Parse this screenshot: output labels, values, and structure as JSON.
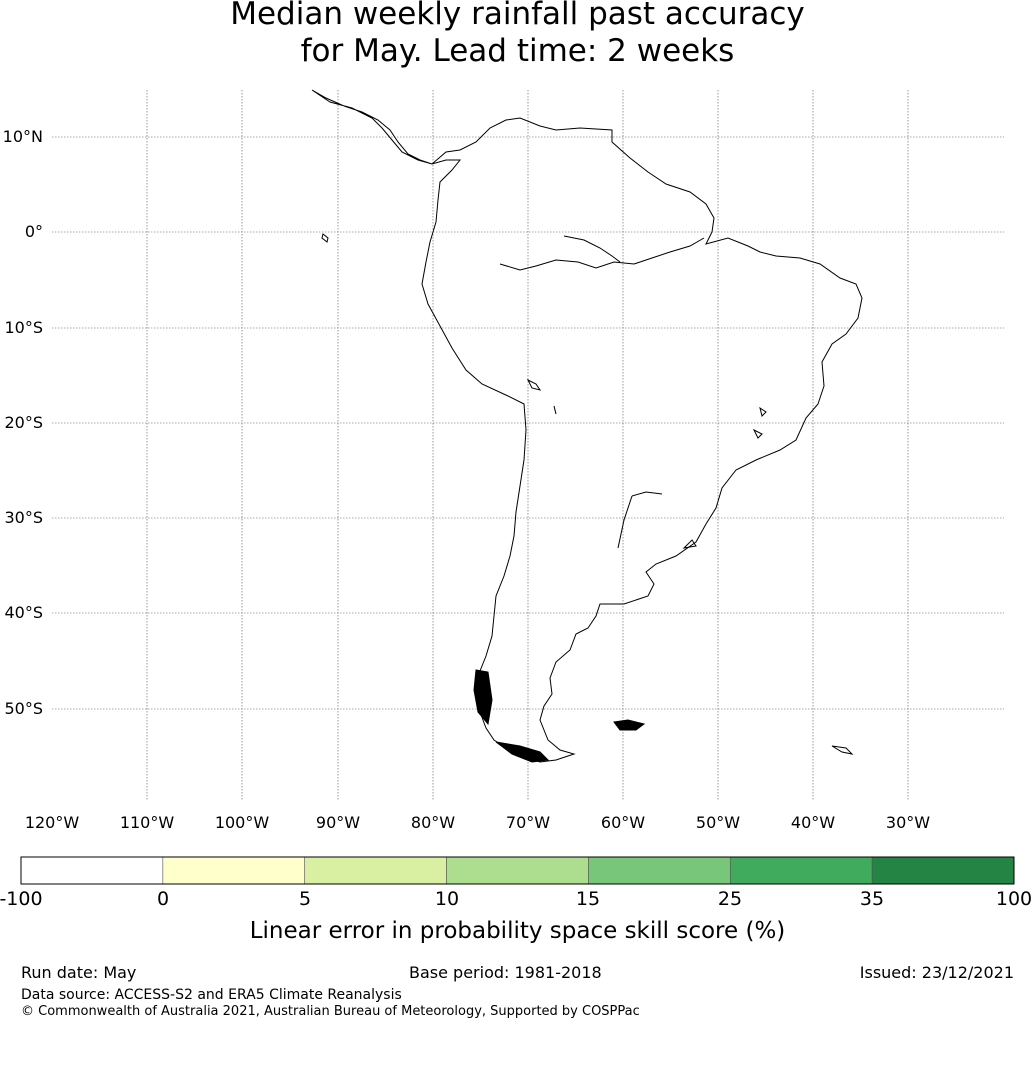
{
  "title": {
    "line1": "Median weekly rainfall past accuracy",
    "line2": "for May. Lead time: 2 weeks"
  },
  "map": {
    "lat_labels": [
      "10°N",
      "0°",
      "10°S",
      "20°S",
      "30°S",
      "40°S",
      "50°S"
    ],
    "lon_labels": [
      "120°W",
      "110°W",
      "100°W",
      "90°W",
      "80°W",
      "70°W",
      "60°W",
      "50°W",
      "40°W",
      "30°W"
    ]
  },
  "colorbar": {
    "title": "Linear error in probability space skill score (%)",
    "tick_labels": [
      "-100",
      "0",
      "5",
      "10",
      "15",
      "25",
      "35",
      "100"
    ],
    "colors": [
      "#ffffff",
      "#ffffcc",
      "#d9f0a3",
      "#addd8e",
      "#78c679",
      "#41ab5d",
      "#238443"
    ]
  },
  "footer": {
    "run_date": "Run date: May",
    "base_period": "Base period: 1981-2018",
    "issued": "Issued: 23/12/2021",
    "data_source": "Data source: ACCESS-S2 and ERA5 Climate Reanalysis",
    "copyright": "© Commonwealth of Australia 2021, Australian Bureau of Meteorology, Supported by COSPPac"
  }
}
